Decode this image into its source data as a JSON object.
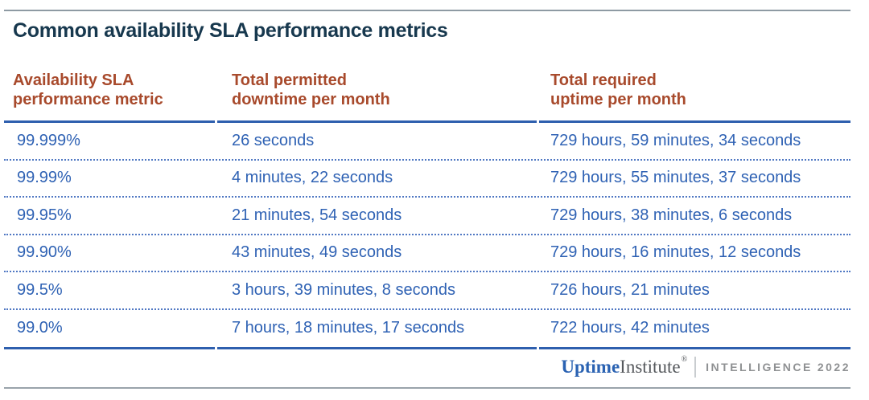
{
  "title": "Common availability SLA performance metrics",
  "colors": {
    "title_navy": "#17384E",
    "header_rust": "#A84A2C",
    "data_blue": "#2F62B4",
    "line_blue": "#2E5FAE",
    "rule_gray": "#8E9AA3"
  },
  "table": {
    "columns": [
      {
        "line1": "Availability SLA",
        "line2": "performance metric"
      },
      {
        "line1": "Total permitted",
        "line2": "downtime per month"
      },
      {
        "line1": "Total required",
        "line2": "uptime per month"
      }
    ],
    "rows": [
      {
        "metric": "99.999%",
        "downtime": "26 seconds",
        "uptime": "729 hours, 59 minutes, 34 seconds"
      },
      {
        "metric": "99.99%",
        "downtime": "4 minutes, 22 seconds",
        "uptime": "729 hours, 55 minutes, 37 seconds"
      },
      {
        "metric": "99.95%",
        "downtime": "21 minutes, 54 seconds",
        "uptime": "729 hours, 38 minutes, 6 seconds"
      },
      {
        "metric": "99.90%",
        "downtime": "43 minutes, 49 seconds",
        "uptime": "729 hours, 16 minutes, 12 seconds"
      },
      {
        "metric": "99.5%",
        "downtime": "3 hours, 39 minutes, 8 seconds",
        "uptime": "726 hours, 21 minutes"
      },
      {
        "metric": "99.0%",
        "downtime": "7 hours, 18 minutes, 17 seconds",
        "uptime": "722 hours, 42 minutes"
      }
    ]
  },
  "footer": {
    "brand_primary": "Uptime",
    "brand_secondary": "Institute",
    "registered_mark": "®",
    "division": "INTELLIGENCE",
    "year": "2022"
  },
  "chart_data": {
    "type": "table",
    "title": "Common availability SLA performance metrics",
    "columns": [
      "Availability SLA performance metric",
      "Total permitted downtime per month",
      "Total required uptime per month"
    ],
    "rows": [
      [
        "99.999%",
        "26 seconds",
        "729 hours, 59 minutes, 34 seconds"
      ],
      [
        "99.99%",
        "4 minutes, 22 seconds",
        "729 hours, 55 minutes, 37 seconds"
      ],
      [
        "99.95%",
        "21 minutes, 54 seconds",
        "729 hours, 38 minutes, 6 seconds"
      ],
      [
        "99.90%",
        "43 minutes, 49 seconds",
        "729 hours, 16 minutes, 12 seconds"
      ],
      [
        "99.5%",
        "3 hours, 39 minutes, 8 seconds",
        "726 hours, 21 minutes"
      ],
      [
        "99.0%",
        "7 hours, 18 minutes, 17 seconds",
        "722 hours, 42 minutes"
      ]
    ],
    "source": "Uptime Institute | INTELLIGENCE 2022"
  }
}
